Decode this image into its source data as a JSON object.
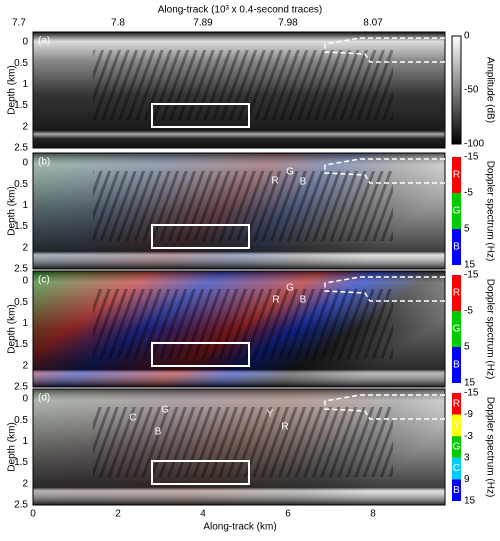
{
  "top_axis": {
    "label": "Along-track (10³ x 0.4-second traces)",
    "ticks": [
      "7.7",
      "7.8",
      "7.89",
      "7.98",
      "8.07"
    ]
  },
  "bottom_axis": {
    "label": "Along-track (km)",
    "ticks": [
      "0",
      "2",
      "4",
      "6",
      "8"
    ]
  },
  "y_axis": {
    "label": "Depth (km)",
    "ticks": [
      "0",
      "0.5",
      "1",
      "1.5",
      "2",
      "2.5"
    ]
  },
  "panels": [
    {
      "tag": "(a)",
      "colorbar": {
        "label": "Amplitude (dB)",
        "ticks": [
          "0",
          "-50",
          "-100"
        ],
        "bands": []
      },
      "annotations": []
    },
    {
      "tag": "(b)",
      "colorbar": {
        "label": "Doppler spectrum (Hz)",
        "ticks": [
          "-15",
          "-5",
          "5",
          "15"
        ],
        "bands": [
          "R",
          "G",
          "B"
        ]
      },
      "annotations": [
        "G",
        "R",
        "B"
      ]
    },
    {
      "tag": "(c)",
      "colorbar": {
        "label": "Doppler spectrum (Hz)",
        "ticks": [
          "-15",
          "-5",
          "5",
          "15"
        ],
        "bands": [
          "R",
          "G",
          "B"
        ]
      },
      "annotations": [
        "G",
        "R",
        "B"
      ]
    },
    {
      "tag": "(d)",
      "colorbar": {
        "label": "Doppler spectrum (Hz)",
        "ticks": [
          "-15",
          "-9",
          "-3",
          "3",
          "9",
          "15"
        ],
        "bands": [
          "R",
          "Y",
          "G",
          "C",
          "B"
        ]
      },
      "annotations": [
        "G",
        "C",
        "B",
        "Y",
        "R"
      ]
    }
  ]
}
